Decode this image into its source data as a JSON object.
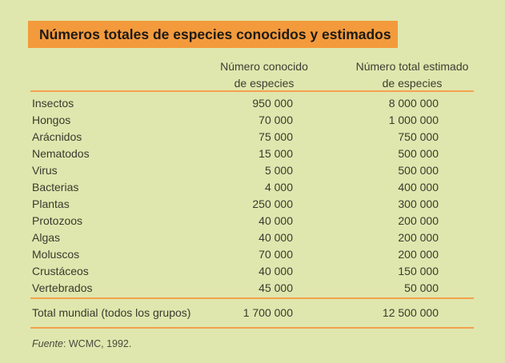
{
  "table": {
    "title": "Números totales de especies conocidos y estimados",
    "columns": {
      "known": [
        "Número conocido",
        "de especies"
      ],
      "estimated": [
        "Número total estimado",
        "de especies"
      ]
    },
    "rows": [
      {
        "group": "Insectos",
        "known": "950 000",
        "estimated": "8 000 000"
      },
      {
        "group": "Hongos",
        "known": "70 000",
        "estimated": "1 000 000"
      },
      {
        "group": "Arácnidos",
        "known": "75 000",
        "estimated": "750 000"
      },
      {
        "group": "Nematodos",
        "known": "15 000",
        "estimated": "500 000"
      },
      {
        "group": "Virus",
        "known": "5 000",
        "estimated": "500 000"
      },
      {
        "group": "Bacterias",
        "known": "4 000",
        "estimated": "400 000"
      },
      {
        "group": "Plantas",
        "known": "250 000",
        "estimated": "300 000"
      },
      {
        "group": "Protozoos",
        "known": "40 000",
        "estimated": "200 000"
      },
      {
        "group": "Algas",
        "known": "40 000",
        "estimated": "200 000"
      },
      {
        "group": "Moluscos",
        "known": "70 000",
        "estimated": "200 000"
      },
      {
        "group": "Crustáceos",
        "known": "40 000",
        "estimated": "150 000"
      },
      {
        "group": "Vertebrados",
        "known": "45 000",
        "estimated": "50 000"
      }
    ],
    "total": {
      "group": "Total mundial (todos los grupos)",
      "known": "1 700 000",
      "estimated": "12 500 000"
    },
    "source": {
      "label": "Fuente",
      "text": ": WCMC, 1992."
    }
  },
  "colors": {
    "background": "#dfe7ae",
    "title_bar": "#f39a3c",
    "rule": "#f3a24c"
  }
}
